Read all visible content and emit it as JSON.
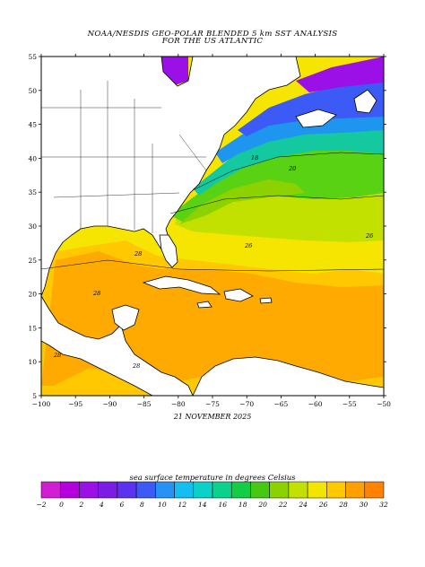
{
  "title_line1": "NOAA/NESDIS GEO-POLAR BLENDED 5 km SST ANALYSIS",
  "title_line2": "FOR THE US ATLANTIC",
  "date": "21 NOVEMBER 2025",
  "legend_title": "sea surface temperature in degrees Celsius",
  "lat_ticks": [
    "55",
    "50",
    "45",
    "40",
    "35",
    "30",
    "25",
    "20",
    "15",
    "10",
    "5"
  ],
  "lon_ticks": [
    "−100",
    "−95",
    "−90",
    "−85",
    "−80",
    "−75",
    "−70",
    "−65",
    "−60",
    "−55",
    "−50"
  ],
  "legend_labels": [
    "−2",
    "0",
    "2",
    "4",
    "6",
    "8",
    "10",
    "12",
    "14",
    "16",
    "18",
    "20",
    "22",
    "24",
    "26",
    "28",
    "30",
    "32"
  ],
  "legend_colors": [
    "#d21ed2",
    "#b400dc",
    "#9b10e6",
    "#7a1ee6",
    "#5a32f0",
    "#3c5af5",
    "#2891f5",
    "#14bef0",
    "#0ad2c8",
    "#0ad28c",
    "#14cd46",
    "#46c814",
    "#8cd200",
    "#c3e100",
    "#f0e600",
    "#ffc800",
    "#ffa000",
    "#ff8200"
  ],
  "contour_labels": [
    "26",
    "26",
    "28",
    "28",
    "28",
    "28",
    "20",
    "18"
  ],
  "map_colors": {
    "land": "#ffffff",
    "coastline": "#000000",
    "warm_caribbean": "#ffaa00",
    "gulf": "#ffc800",
    "subtropical": "#f5e500",
    "mid": "#c3e100",
    "cool": "#5ad214",
    "cold": "#14c8a0",
    "very_cold": "#1e96f0",
    "north": "#3c5af5",
    "labrador": "#9b10e6"
  }
}
